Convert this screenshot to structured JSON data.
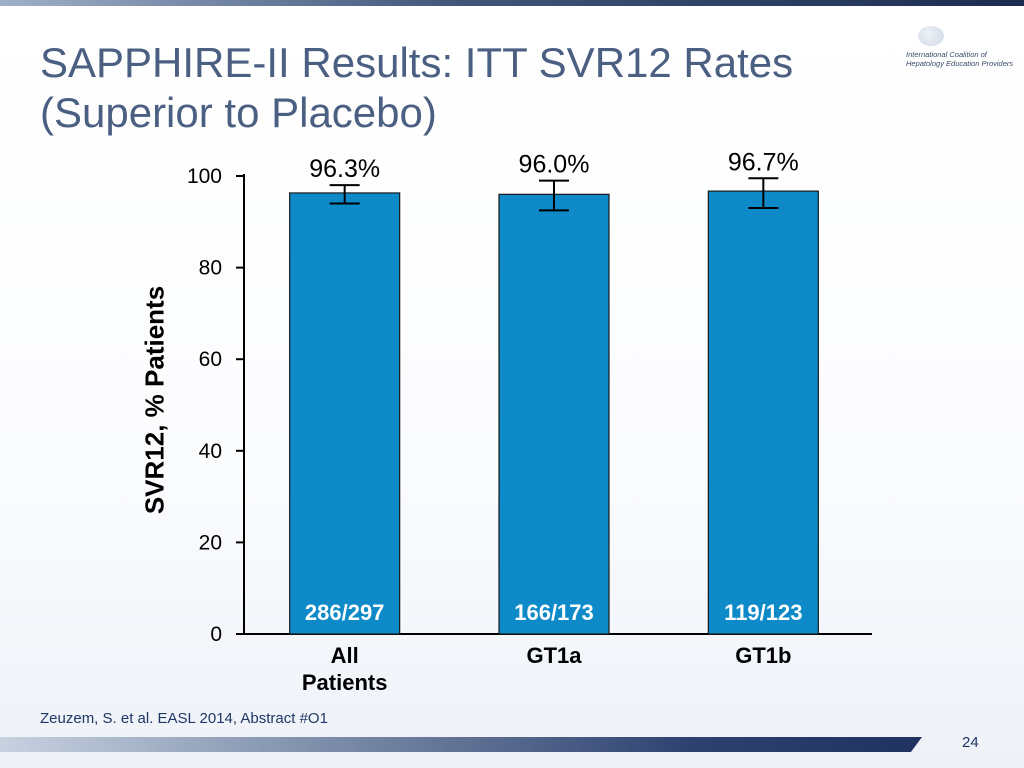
{
  "slide": {
    "title_lines": [
      "SAPPHIRE-II Results: ITT SVR12 Rates",
      "(Superior to Placebo)"
    ],
    "logo_text_lines": [
      "International Coalition of",
      "Hepatology Education Providers"
    ],
    "footer": "Zeuzem, S. et al. EASL 2014, Abstract #O1",
    "page_number": "24"
  },
  "chart_data": {
    "type": "bar",
    "ylabel": "SVR12, % Patients",
    "ylim": [
      0,
      100
    ],
    "yticks": [
      "0",
      "20",
      "40",
      "60",
      "80",
      "100"
    ],
    "categories": [
      [
        "All",
        "Patients"
      ],
      [
        "GT1a"
      ],
      [
        "GT1b"
      ]
    ],
    "values": [
      96.3,
      96.0,
      96.7
    ],
    "value_labels": [
      "96.3%",
      "96.0%",
      "96.7%"
    ],
    "error_bars": [
      [
        94.0,
        98.0
      ],
      [
        92.5,
        99.0
      ],
      [
        93.0,
        99.5
      ]
    ],
    "bar_labels": [
      "286/297",
      "166/173",
      "119/123"
    ],
    "bar_color": "#0e8ac8",
    "bar_label_color": "#ffffff",
    "grid": false
  }
}
